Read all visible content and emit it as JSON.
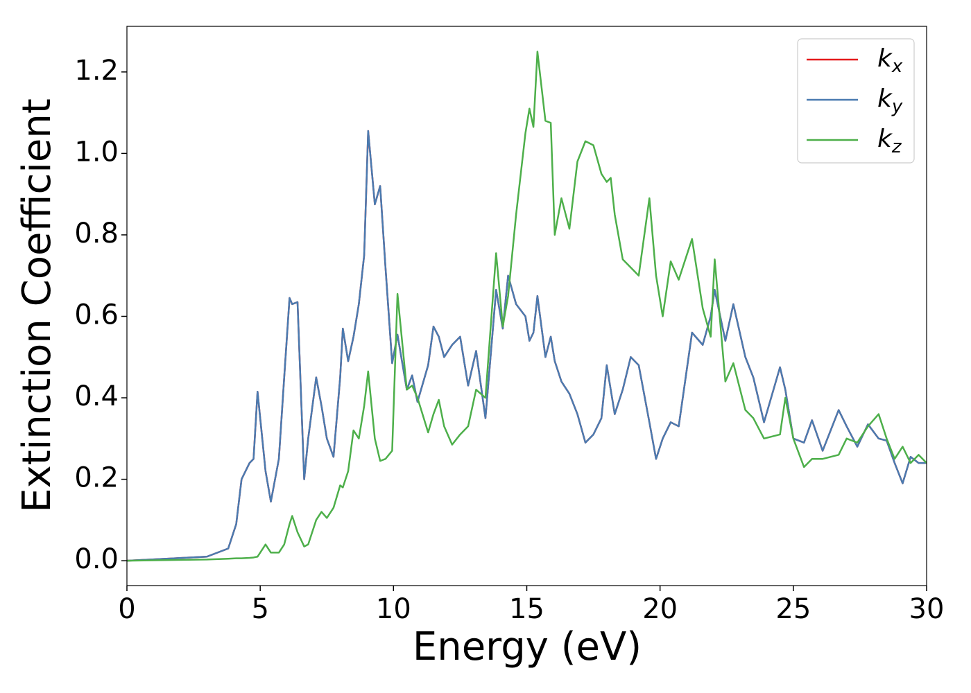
{
  "chart_data": {
    "type": "line",
    "xlabel": "Energy (eV)",
    "ylabel": "Extinction Coefficient",
    "x": [
      0,
      3,
      3.8,
      4.1,
      4.3,
      4.6,
      4.75,
      4.9,
      5.2,
      5.4,
      5.7,
      5.9,
      6.1,
      6.2,
      6.4,
      6.65,
      6.8,
      7.1,
      7.3,
      7.5,
      7.75,
      8.0,
      8.1,
      8.3,
      8.5,
      8.7,
      8.9,
      9.05,
      9.3,
      9.5,
      9.7,
      9.95,
      10.15,
      10.5,
      10.7,
      10.9,
      11.3,
      11.5,
      11.7,
      11.9,
      12.2,
      12.5,
      12.8,
      13.1,
      13.45,
      13.85,
      14.1,
      14.3,
      14.6,
      14.95,
      15.1,
      15.25,
      15.4,
      15.7,
      15.9,
      16.05,
      16.3,
      16.6,
      16.9,
      17.2,
      17.5,
      17.8,
      18.0,
      18.15,
      18.3,
      18.6,
      18.9,
      19.2,
      19.6,
      19.85,
      20.1,
      20.4,
      20.7,
      21.2,
      21.6,
      21.9,
      22.05,
      22.45,
      22.75,
      23.2,
      23.5,
      23.9,
      24.5,
      24.7,
      25.0,
      25.4,
      25.7,
      26.1,
      26.7,
      27.0,
      27.4,
      27.8,
      28.2,
      28.5,
      28.8,
      29.1,
      29.4,
      29.7,
      30
    ],
    "series": [
      {
        "name": "kx",
        "color": "#e41a1c",
        "values": [
          0,
          0.01,
          0.03,
          0.09,
          0.2,
          0.24,
          0.25,
          0.415,
          0.22,
          0.145,
          0.25,
          0.45,
          0.645,
          0.63,
          0.635,
          0.2,
          0.3,
          0.45,
          0.38,
          0.3,
          0.255,
          0.45,
          0.57,
          0.49,
          0.55,
          0.63,
          0.75,
          1.055,
          0.875,
          0.92,
          0.72,
          0.485,
          0.555,
          0.42,
          0.455,
          0.39,
          0.48,
          0.575,
          0.55,
          0.5,
          0.53,
          0.55,
          0.43,
          0.515,
          0.35,
          0.665,
          0.57,
          0.7,
          0.63,
          0.6,
          0.54,
          0.56,
          0.65,
          0.5,
          0.55,
          0.49,
          0.44,
          0.41,
          0.36,
          0.29,
          0.31,
          0.35,
          0.48,
          0.42,
          0.36,
          0.42,
          0.5,
          0.48,
          0.34,
          0.25,
          0.3,
          0.34,
          0.33,
          0.56,
          0.53,
          0.6,
          0.665,
          0.54,
          0.63,
          0.5,
          0.45,
          0.34,
          0.475,
          0.42,
          0.3,
          0.29,
          0.345,
          0.27,
          0.37,
          0.33,
          0.28,
          0.335,
          0.3,
          0.295,
          0.24,
          0.19,
          0.255,
          0.24,
          0.24
        ]
      },
      {
        "name": "ky",
        "color": "#4a7bb0",
        "values": [
          0,
          0.01,
          0.03,
          0.09,
          0.2,
          0.24,
          0.25,
          0.415,
          0.22,
          0.145,
          0.25,
          0.45,
          0.645,
          0.63,
          0.635,
          0.2,
          0.3,
          0.45,
          0.38,
          0.3,
          0.255,
          0.45,
          0.57,
          0.49,
          0.55,
          0.63,
          0.75,
          1.055,
          0.875,
          0.92,
          0.72,
          0.485,
          0.555,
          0.42,
          0.455,
          0.39,
          0.48,
          0.575,
          0.55,
          0.5,
          0.53,
          0.55,
          0.43,
          0.515,
          0.35,
          0.665,
          0.57,
          0.7,
          0.63,
          0.6,
          0.54,
          0.56,
          0.65,
          0.5,
          0.55,
          0.49,
          0.44,
          0.41,
          0.36,
          0.29,
          0.31,
          0.35,
          0.48,
          0.42,
          0.36,
          0.42,
          0.5,
          0.48,
          0.34,
          0.25,
          0.3,
          0.34,
          0.33,
          0.56,
          0.53,
          0.6,
          0.665,
          0.54,
          0.63,
          0.5,
          0.45,
          0.34,
          0.475,
          0.42,
          0.3,
          0.29,
          0.345,
          0.27,
          0.37,
          0.33,
          0.28,
          0.335,
          0.3,
          0.295,
          0.24,
          0.19,
          0.255,
          0.24,
          0.24
        ]
      },
      {
        "name": "kz",
        "color": "#4daf4a",
        "values": [
          0,
          0.003,
          0.005,
          0.006,
          0.006,
          0.007,
          0.008,
          0.01,
          0.04,
          0.02,
          0.02,
          0.04,
          0.09,
          0.11,
          0.07,
          0.035,
          0.04,
          0.1,
          0.12,
          0.105,
          0.13,
          0.185,
          0.18,
          0.22,
          0.32,
          0.3,
          0.38,
          0.465,
          0.3,
          0.245,
          0.25,
          0.27,
          0.655,
          0.42,
          0.43,
          0.4,
          0.315,
          0.36,
          0.395,
          0.33,
          0.285,
          0.31,
          0.33,
          0.42,
          0.4,
          0.755,
          0.575,
          0.65,
          0.85,
          1.05,
          1.11,
          1.065,
          1.25,
          1.08,
          1.075,
          0.8,
          0.89,
          0.815,
          0.98,
          1.03,
          1.02,
          0.95,
          0.93,
          0.94,
          0.85,
          0.74,
          0.72,
          0.7,
          0.89,
          0.7,
          0.6,
          0.735,
          0.69,
          0.79,
          0.62,
          0.55,
          0.74,
          0.44,
          0.485,
          0.37,
          0.35,
          0.3,
          0.31,
          0.4,
          0.3,
          0.23,
          0.25,
          0.25,
          0.26,
          0.3,
          0.29,
          0.33,
          0.36,
          0.3,
          0.25,
          0.28,
          0.24,
          0.26,
          0.24
        ]
      }
    ],
    "xlim": [
      0,
      30
    ],
    "xticks": [
      0,
      5,
      10,
      15,
      20,
      25,
      30
    ],
    "ylim": [
      -0.061,
      1.312
    ],
    "yticks": [
      {
        "value": 0,
        "label": "0.0"
      },
      0.2,
      0.4,
      0.6,
      0.8,
      {
        "value": 1,
        "label": "1.0"
      },
      1.2
    ],
    "grid": false,
    "legend": "upper right"
  }
}
